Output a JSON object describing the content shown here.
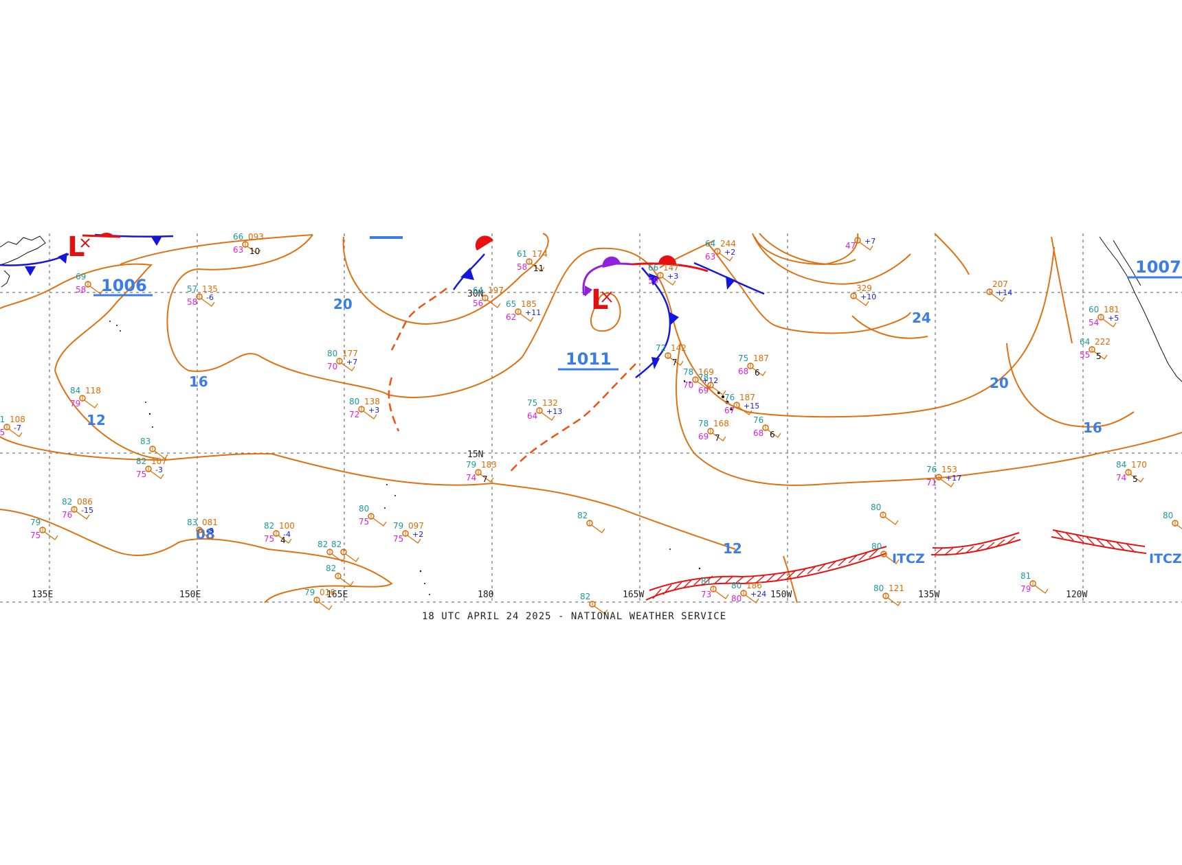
{
  "footer": "18 UTC APRIL 24 2025 - NATIONAL WEATHER SERVICE",
  "lon_labels": [
    "135E",
    "150E",
    "165E",
    "180",
    "165W",
    "150W",
    "135W",
    "120W"
  ],
  "lat_labels": [
    "30N",
    "15N"
  ],
  "isobar_labels": [
    "20",
    "16",
    "12",
    "08",
    "12",
    "24",
    "20",
    "16"
  ],
  "pressure_centers": [
    "1006",
    "1011",
    "1007"
  ],
  "low_symbols": [
    "L",
    "L"
  ],
  "itcz_labels": [
    "ITCZ",
    "ITCZ"
  ],
  "colors": {
    "isobar": "#e07010",
    "label_blue": "#3b7de8",
    "cold_front": "#1515e0",
    "warm_front": "#e81010",
    "occluded": "#9020e0",
    "trough": "#f05010",
    "itcz": "#e81010",
    "grid": "#555555"
  },
  "stations": [
    {
      "t": "69",
      "p": "",
      "d": "58",
      "x": "",
      "v": ""
    },
    {
      "t": "57",
      "p": "135",
      "d": "58",
      "x": "-6",
      "v": ""
    },
    {
      "t": "66",
      "p": "093",
      "d": "63",
      "x": "",
      "v": "10"
    },
    {
      "t": "84",
      "p": "118",
      "d": "79",
      "x": "",
      "v": ""
    },
    {
      "t": "81",
      "p": "108",
      "d": "75",
      "x": "-7",
      "v": ""
    },
    {
      "t": "83",
      "p": "",
      "d": "",
      "x": "",
      "v": ""
    },
    {
      "t": "82",
      "p": "107",
      "d": "75",
      "x": "-3",
      "v": ""
    },
    {
      "t": "82",
      "p": "086",
      "d": "76",
      "x": "-15",
      "v": ""
    },
    {
      "t": "79",
      "p": "",
      "d": "75",
      "x": "",
      "v": ""
    },
    {
      "t": "83",
      "p": "081",
      "d": "",
      "x": "-8",
      "v": ""
    },
    {
      "t": "82",
      "p": "100",
      "d": "75",
      "x": "-4",
      "v": "4"
    },
    {
      "t": "82",
      "p": "",
      "d": "",
      "x": "",
      "v": ""
    },
    {
      "t": "82",
      "p": "",
      "d": "",
      "x": "",
      "v": ""
    },
    {
      "t": "82",
      "p": "",
      "d": "",
      "x": "",
      "v": ""
    },
    {
      "t": "79",
      "p": "016",
      "d": "",
      "x": "",
      "v": ""
    },
    {
      "t": "80",
      "p": "177",
      "d": "70",
      "x": "+7",
      "v": ""
    },
    {
      "t": "80",
      "p": "138",
      "d": "72",
      "x": "+3",
      "v": ""
    },
    {
      "t": "80",
      "p": "",
      "d": "75",
      "x": "",
      "v": ""
    },
    {
      "t": "79",
      "p": "097",
      "d": "75",
      "x": "+2",
      "v": ""
    },
    {
      "t": "64",
      "p": "197",
      "d": "56",
      "x": "",
      "v": ""
    },
    {
      "t": "61",
      "p": "174",
      "d": "58",
      "x": "",
      "v": "11"
    },
    {
      "t": "65",
      "p": "185",
      "d": "62",
      "x": "+11",
      "v": ""
    },
    {
      "t": "75",
      "p": "132",
      "d": "64",
      "x": "+13",
      "v": ""
    },
    {
      "t": "79",
      "p": "183",
      "d": "74",
      "x": "",
      "v": "7"
    },
    {
      "t": "82",
      "p": "",
      "d": "",
      "x": "",
      "v": ""
    },
    {
      "t": "82",
      "p": "",
      "d": "",
      "x": "",
      "v": ""
    },
    {
      "t": "66",
      "p": "147",
      "d": "59",
      "x": "+3",
      "v": ""
    },
    {
      "t": "72",
      "p": "142",
      "d": "",
      "x": "",
      "v": "7"
    },
    {
      "t": "78",
      "p": "169",
      "d": "70",
      "x": "+12",
      "v": ""
    },
    {
      "t": "78",
      "p": "",
      "d": "69",
      "x": "",
      "v": ""
    },
    {
      "t": "75",
      "p": "187",
      "d": "68",
      "x": "",
      "v": "6"
    },
    {
      "t": "76",
      "p": "187",
      "d": "67",
      "x": "+15",
      "v": ""
    },
    {
      "t": "76",
      "p": "",
      "d": "68",
      "x": "",
      "v": "6"
    },
    {
      "t": "78",
      "p": "168",
      "d": "69",
      "x": "",
      "v": "7"
    },
    {
      "t": "64",
      "p": "244",
      "d": "63",
      "x": "+2",
      "v": ""
    },
    {
      "t": "",
      "p": "329",
      "d": "",
      "x": "+10",
      "v": ""
    },
    {
      "t": "",
      "p": "207",
      "d": "",
      "x": "+14",
      "v": ""
    },
    {
      "t": "",
      "p": "",
      "d": "47",
      "x": "+7",
      "v": ""
    },
    {
      "t": "76",
      "p": "153",
      "d": "71",
      "x": "+17",
      "v": ""
    },
    {
      "t": "80",
      "p": "",
      "d": "",
      "x": "",
      "v": ""
    },
    {
      "t": "80",
      "p": "",
      "d": "",
      "x": "",
      "v": ""
    },
    {
      "t": "80",
      "p": "121",
      "d": "",
      "x": "",
      "v": ""
    },
    {
      "t": "81",
      "p": "",
      "d": "73",
      "x": "",
      "v": ""
    },
    {
      "t": "80",
      "p": "186",
      "d": "80",
      "x": "+24",
      "v": ""
    },
    {
      "t": "81",
      "p": "",
      "d": "79",
      "x": "",
      "v": ""
    },
    {
      "t": "60",
      "p": "181",
      "d": "54",
      "x": "+5",
      "v": ""
    },
    {
      "t": "64",
      "p": "222",
      "d": "55",
      "x": "",
      "v": "5"
    },
    {
      "t": "84",
      "p": "170",
      "d": "74",
      "x": "",
      "v": "5"
    },
    {
      "t": "80",
      "p": "",
      "d": "",
      "x": "",
      "v": ""
    }
  ]
}
